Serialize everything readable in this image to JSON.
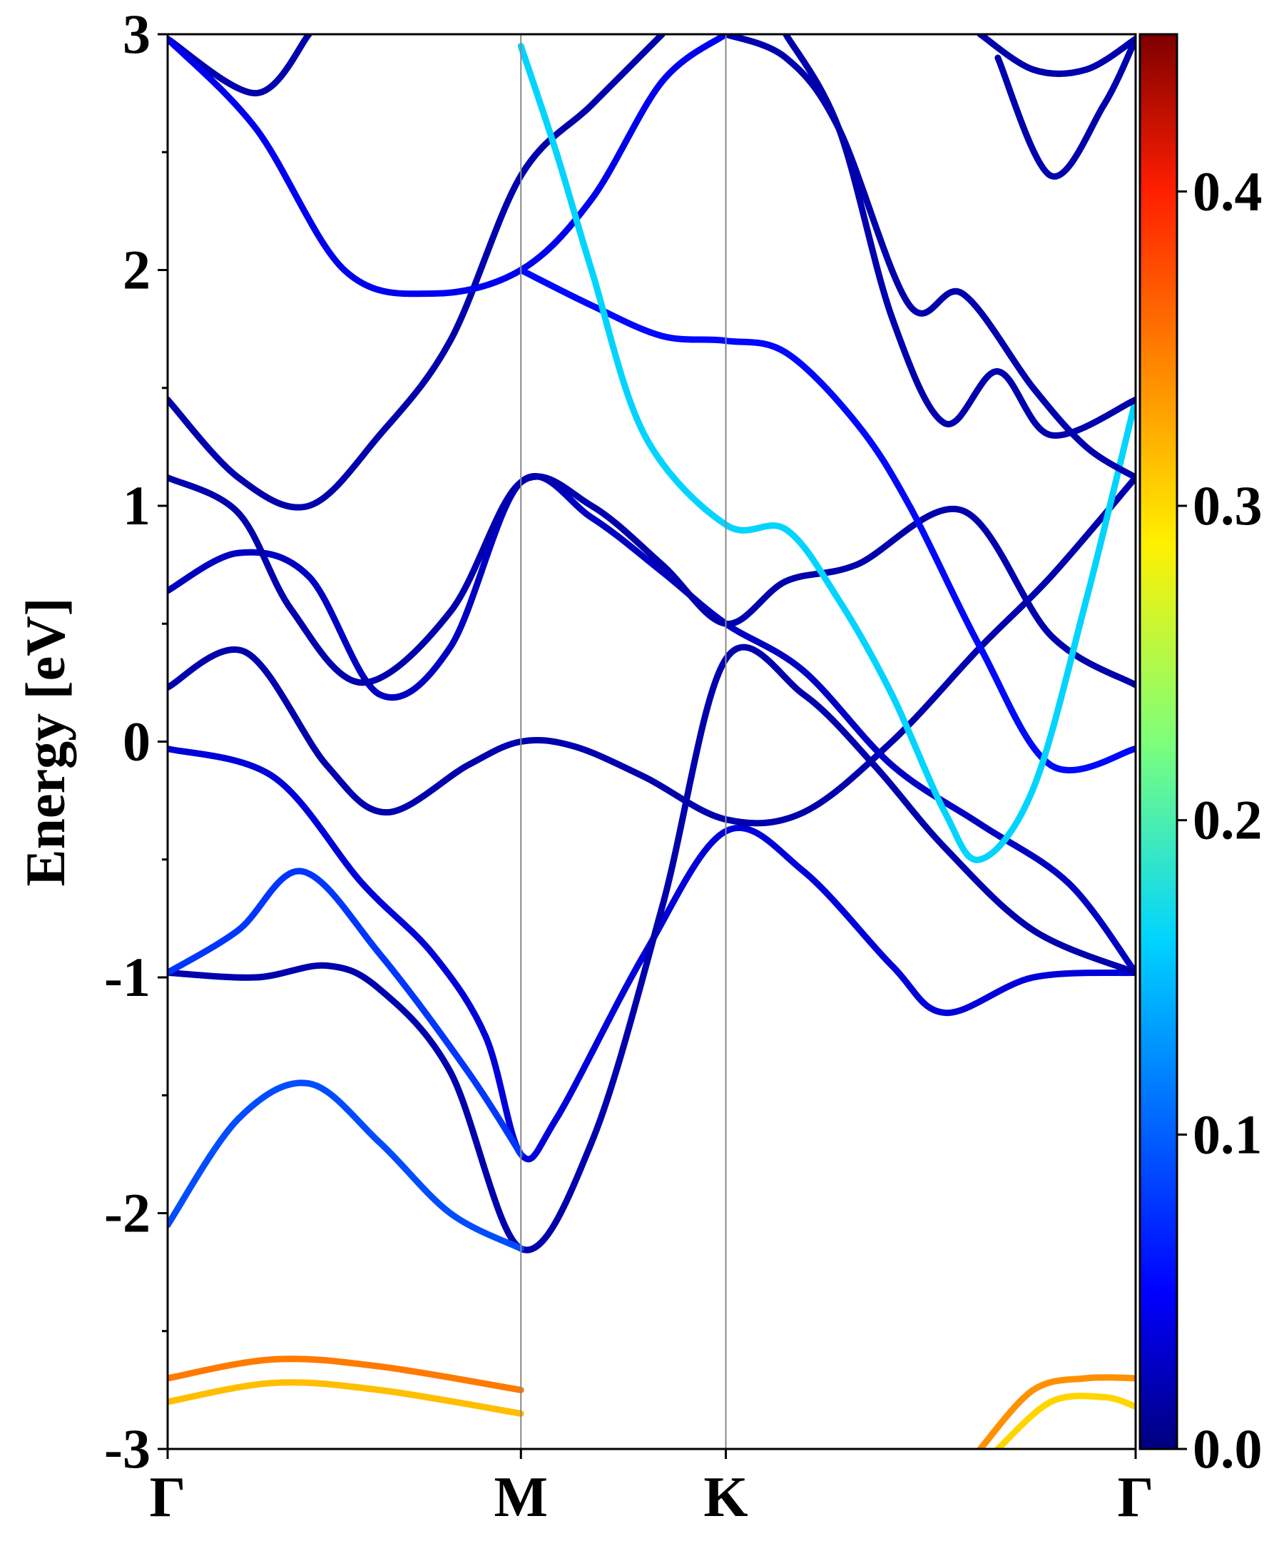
{
  "chart_data": {
    "type": "line",
    "title": "",
    "ylabel": "Energy [eV]",
    "xlabel": "",
    "ylim": [
      -3,
      3
    ],
    "x_ticks": [
      {
        "label": "Γ",
        "x": 0
      },
      {
        "label": "M",
        "x": 1.0
      },
      {
        "label": "K",
        "x": 1.58
      },
      {
        "label": "Γ",
        "x": 2.74
      }
    ],
    "y_ticks": [
      -3,
      -2,
      -1,
      0,
      1,
      2,
      3
    ],
    "y_tick_labels": [
      "-3",
      "-2",
      "-1",
      "0",
      "1",
      "2",
      "3"
    ],
    "colorbar": {
      "range": [
        0.0,
        0.45
      ],
      "ticks": [
        0.0,
        0.1,
        0.2,
        0.3,
        0.4
      ],
      "tick_labels": [
        "0.0",
        "0.1",
        "0.2",
        "0.3",
        "0.4"
      ],
      "colormap": "jet"
    },
    "series": [
      {
        "color_value": 0.02,
        "points": [
          [
            0,
            0.23
          ],
          [
            0.22,
            0.38
          ],
          [
            0.45,
            -0.1
          ],
          [
            0.62,
            -0.3
          ],
          [
            0.85,
            -0.1
          ],
          [
            1.0,
            0.0
          ],
          [
            1.15,
            -0.02
          ],
          [
            1.35,
            -0.15
          ],
          [
            1.58,
            -0.33
          ],
          [
            1.8,
            -0.3
          ],
          [
            2.05,
            0.0
          ],
          [
            2.3,
            0.4
          ],
          [
            2.5,
            0.7
          ],
          [
            2.74,
            1.12
          ]
        ]
      },
      {
        "color_value": 0.03,
        "points": [
          [
            0,
            0.64
          ],
          [
            0.2,
            0.8
          ],
          [
            0.4,
            0.7
          ],
          [
            0.6,
            0.2
          ],
          [
            0.8,
            0.4
          ],
          [
            1.0,
            1.1
          ],
          [
            1.2,
            0.95
          ],
          [
            1.4,
            0.72
          ],
          [
            1.58,
            0.5
          ],
          [
            1.8,
            0.3
          ],
          [
            2.05,
            -0.1
          ],
          [
            2.3,
            -0.35
          ],
          [
            2.55,
            -0.6
          ],
          [
            2.74,
            -0.98
          ]
        ]
      },
      {
        "color_value": 0.02,
        "points": [
          [
            0,
            1.12
          ],
          [
            0.2,
            0.97
          ],
          [
            0.35,
            0.56
          ],
          [
            0.55,
            0.25
          ],
          [
            0.8,
            0.55
          ],
          [
            1.0,
            1.1
          ],
          [
            1.2,
            1.0
          ],
          [
            1.4,
            0.75
          ],
          [
            1.58,
            0.5
          ],
          [
            1.75,
            0.68
          ],
          [
            1.95,
            0.75
          ],
          [
            2.25,
            0.98
          ],
          [
            2.5,
            0.45
          ],
          [
            2.74,
            0.24
          ]
        ]
      },
      {
        "color_value": 0.02,
        "points": [
          [
            0,
            1.45
          ],
          [
            0.2,
            1.12
          ],
          [
            0.4,
            1.0
          ],
          [
            0.6,
            1.3
          ],
          [
            0.8,
            1.7
          ],
          [
            1.0,
            2.4
          ],
          [
            1.2,
            2.7
          ],
          [
            1.4,
            3.0
          ]
        ]
      },
      {
        "color_value": 0.02,
        "points": [
          [
            0,
            2.98
          ],
          [
            0.25,
            2.75
          ],
          [
            0.4,
            3.0
          ]
        ]
      },
      {
        "color_value": 0.04,
        "points": [
          [
            0,
            -0.03
          ],
          [
            0.3,
            -0.15
          ],
          [
            0.55,
            -0.6
          ],
          [
            0.75,
            -0.9
          ],
          [
            0.9,
            -1.25
          ],
          [
            1.0,
            -1.75
          ],
          [
            1.1,
            -1.6
          ],
          [
            1.35,
            -0.9
          ],
          [
            1.58,
            -0.38
          ],
          [
            1.8,
            -0.55
          ],
          [
            2.05,
            -0.95
          ],
          [
            2.2,
            -1.15
          ],
          [
            2.45,
            -1.0
          ],
          [
            2.74,
            -0.98
          ]
        ]
      },
      {
        "color_value": 0.02,
        "points": [
          [
            0,
            -0.98
          ],
          [
            0.25,
            -1.0
          ],
          [
            0.45,
            -0.95
          ],
          [
            0.6,
            -1.05
          ],
          [
            0.8,
            -1.4
          ],
          [
            1.0,
            -2.15
          ],
          [
            1.2,
            -1.7
          ],
          [
            1.4,
            -0.7
          ],
          [
            1.58,
            0.35
          ],
          [
            1.8,
            0.2
          ],
          [
            2.0,
            -0.1
          ],
          [
            2.2,
            -0.45
          ],
          [
            2.45,
            -0.8
          ],
          [
            2.74,
            -0.98
          ]
        ]
      },
      {
        "color_value": 0.09,
        "points": [
          [
            0,
            -2.05
          ],
          [
            0.2,
            -1.6
          ],
          [
            0.4,
            -1.45
          ],
          [
            0.6,
            -1.7
          ],
          [
            0.8,
            -2.0
          ],
          [
            1.0,
            -2.15
          ]
        ]
      },
      {
        "color_value": 0.08,
        "points": [
          [
            0,
            -0.98
          ],
          [
            0.2,
            -0.8
          ],
          [
            0.38,
            -0.55
          ],
          [
            0.6,
            -0.9
          ],
          [
            0.85,
            -1.4
          ],
          [
            1.0,
            -1.75
          ]
        ]
      },
      {
        "color_value": 0.05,
        "points": [
          [
            0,
            2.98
          ],
          [
            0.25,
            2.6
          ],
          [
            0.5,
            2.0
          ],
          [
            0.75,
            1.9
          ],
          [
            1.0,
            2.0
          ],
          [
            1.2,
            2.3
          ],
          [
            1.4,
            2.8
          ],
          [
            1.58,
            3.0
          ]
        ]
      },
      {
        "color_value": 0.06,
        "points": [
          [
            1.0,
            2.0
          ],
          [
            1.2,
            1.85
          ],
          [
            1.4,
            1.72
          ],
          [
            1.58,
            1.7
          ],
          [
            1.75,
            1.65
          ],
          [
            1.95,
            1.35
          ],
          [
            2.1,
            1.0
          ],
          [
            2.3,
            0.4
          ],
          [
            2.5,
            -0.1
          ],
          [
            2.74,
            -0.03
          ]
        ]
      },
      {
        "color_value": 0.15,
        "points": [
          [
            1.0,
            2.95
          ],
          [
            1.1,
            2.5
          ],
          [
            1.2,
            2.0
          ],
          [
            1.35,
            1.3
          ],
          [
            1.58,
            0.92
          ],
          [
            1.75,
            0.9
          ],
          [
            1.9,
            0.6
          ],
          [
            2.05,
            0.2
          ],
          [
            2.2,
            -0.3
          ],
          [
            2.3,
            -0.5
          ],
          [
            2.45,
            -0.2
          ],
          [
            2.6,
            0.6
          ],
          [
            2.74,
            1.45
          ]
        ]
      },
      {
        "color_value": 0.02,
        "points": [
          [
            1.58,
            3.0
          ],
          [
            1.75,
            2.9
          ],
          [
            1.9,
            2.6
          ],
          [
            2.1,
            1.85
          ],
          [
            2.25,
            1.9
          ],
          [
            2.45,
            1.5
          ],
          [
            2.6,
            1.25
          ],
          [
            2.74,
            1.12
          ]
        ]
      },
      {
        "color_value": 0.02,
        "points": [
          [
            1.75,
            3.0
          ],
          [
            1.9,
            2.6
          ],
          [
            2.05,
            1.8
          ],
          [
            2.2,
            1.35
          ],
          [
            2.35,
            1.57
          ],
          [
            2.5,
            1.3
          ],
          [
            2.74,
            1.45
          ]
        ]
      },
      {
        "color_value": 0.02,
        "points": [
          [
            2.35,
            2.9
          ],
          [
            2.5,
            2.4
          ],
          [
            2.65,
            2.7
          ],
          [
            2.74,
            2.98
          ]
        ]
      },
      {
        "color_value": 0.02,
        "points": [
          [
            2.3,
            3.0
          ],
          [
            2.45,
            2.85
          ],
          [
            2.6,
            2.85
          ],
          [
            2.74,
            2.98
          ]
        ]
      },
      {
        "color_value": 0.34,
        "points": [
          [
            0,
            -2.7
          ],
          [
            0.3,
            -2.62
          ],
          [
            0.6,
            -2.65
          ],
          [
            1.0,
            -2.75
          ]
        ]
      },
      {
        "color_value": 0.31,
        "points": [
          [
            0,
            -2.8
          ],
          [
            0.3,
            -2.72
          ],
          [
            0.6,
            -2.75
          ],
          [
            1.0,
            -2.85
          ]
        ]
      },
      {
        "color_value": 0.33,
        "points": [
          [
            2.3,
            -3.0
          ],
          [
            2.45,
            -2.75
          ],
          [
            2.6,
            -2.7
          ],
          [
            2.74,
            -2.7
          ]
        ]
      },
      {
        "color_value": 0.3,
        "points": [
          [
            2.35,
            -3.0
          ],
          [
            2.5,
            -2.8
          ],
          [
            2.65,
            -2.78
          ],
          [
            2.74,
            -2.82
          ]
        ]
      }
    ]
  }
}
